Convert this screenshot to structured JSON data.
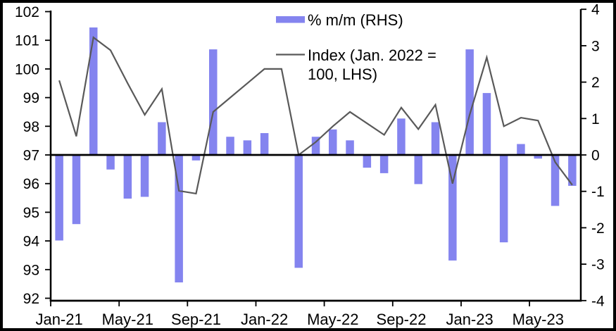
{
  "figure": {
    "background": "#ffffff",
    "border_color": "#000000"
  },
  "legend": {
    "bar_label": "% m/m (RHS)",
    "line_label_line1": "Index (Jan. 2022 =",
    "line_label_line2": "100, LHS)"
  },
  "chart_data": {
    "type": "bar+line",
    "title": "",
    "categories": [
      "Jan-21",
      "Feb-21",
      "Mar-21",
      "Apr-21",
      "May-21",
      "Jun-21",
      "Jul-21",
      "Aug-21",
      "Sep-21",
      "Oct-21",
      "Nov-21",
      "Dec-21",
      "Jan-22",
      "Feb-22",
      "Mar-22",
      "Apr-22",
      "May-22",
      "Jun-22",
      "Jul-22",
      "Aug-22",
      "Sep-22",
      "Oct-22",
      "Nov-22",
      "Dec-22",
      "Jan-23",
      "Feb-23",
      "Mar-23",
      "Apr-23",
      "May-23",
      "Jun-23",
      "Jul-23"
    ],
    "series": [
      {
        "name": "% m/m (RHS)",
        "type": "bar",
        "axis": "right",
        "color": "#8484ef",
        "values": [
          -2.35,
          -1.9,
          3.5,
          -0.4,
          -1.2,
          -1.15,
          0.9,
          -3.5,
          -0.15,
          2.9,
          0.5,
          0.4,
          0.6,
          0,
          -3.1,
          0.5,
          0.7,
          0.4,
          -0.35,
          -0.5,
          1.0,
          -0.8,
          0.9,
          -2.9,
          2.9,
          1.7,
          -2.4,
          0.3,
          -0.1,
          -1.4,
          -0.85
        ]
      },
      {
        "name": "Index (Jan. 2022 = 100, LHS)",
        "type": "line",
        "axis": "left",
        "color": "#595959",
        "values": [
          99.6,
          97.65,
          101.1,
          100.65,
          99.5,
          98.4,
          99.3,
          95.75,
          95.65,
          98.5,
          99.0,
          99.5,
          100.0,
          100.0,
          97.0,
          97.45,
          98.0,
          98.5,
          98.1,
          97.7,
          98.65,
          97.9,
          98.75,
          96.0,
          98.4,
          100.4,
          98.0,
          98.3,
          98.2,
          96.75,
          95.95
        ]
      }
    ],
    "left_axis": {
      "min": 92,
      "max": 102,
      "ticks": [
        92,
        93,
        94,
        95,
        96,
        97,
        98,
        99,
        100,
        101,
        102
      ]
    },
    "right_axis": {
      "min": -4,
      "max": 4,
      "ticks": [
        -4,
        -3,
        -2,
        -1,
        0,
        1,
        2,
        3,
        4
      ]
    },
    "x_axis": {
      "labeled_ticks": [
        "Jan-21",
        "May-21",
        "Sep-21",
        "Jan-22",
        "May-22",
        "Sep-22",
        "Jan-23",
        "May-23"
      ],
      "months_per_labeled_tick": 4
    },
    "grid": false,
    "zero_line": true,
    "legend_position": "top-center"
  }
}
